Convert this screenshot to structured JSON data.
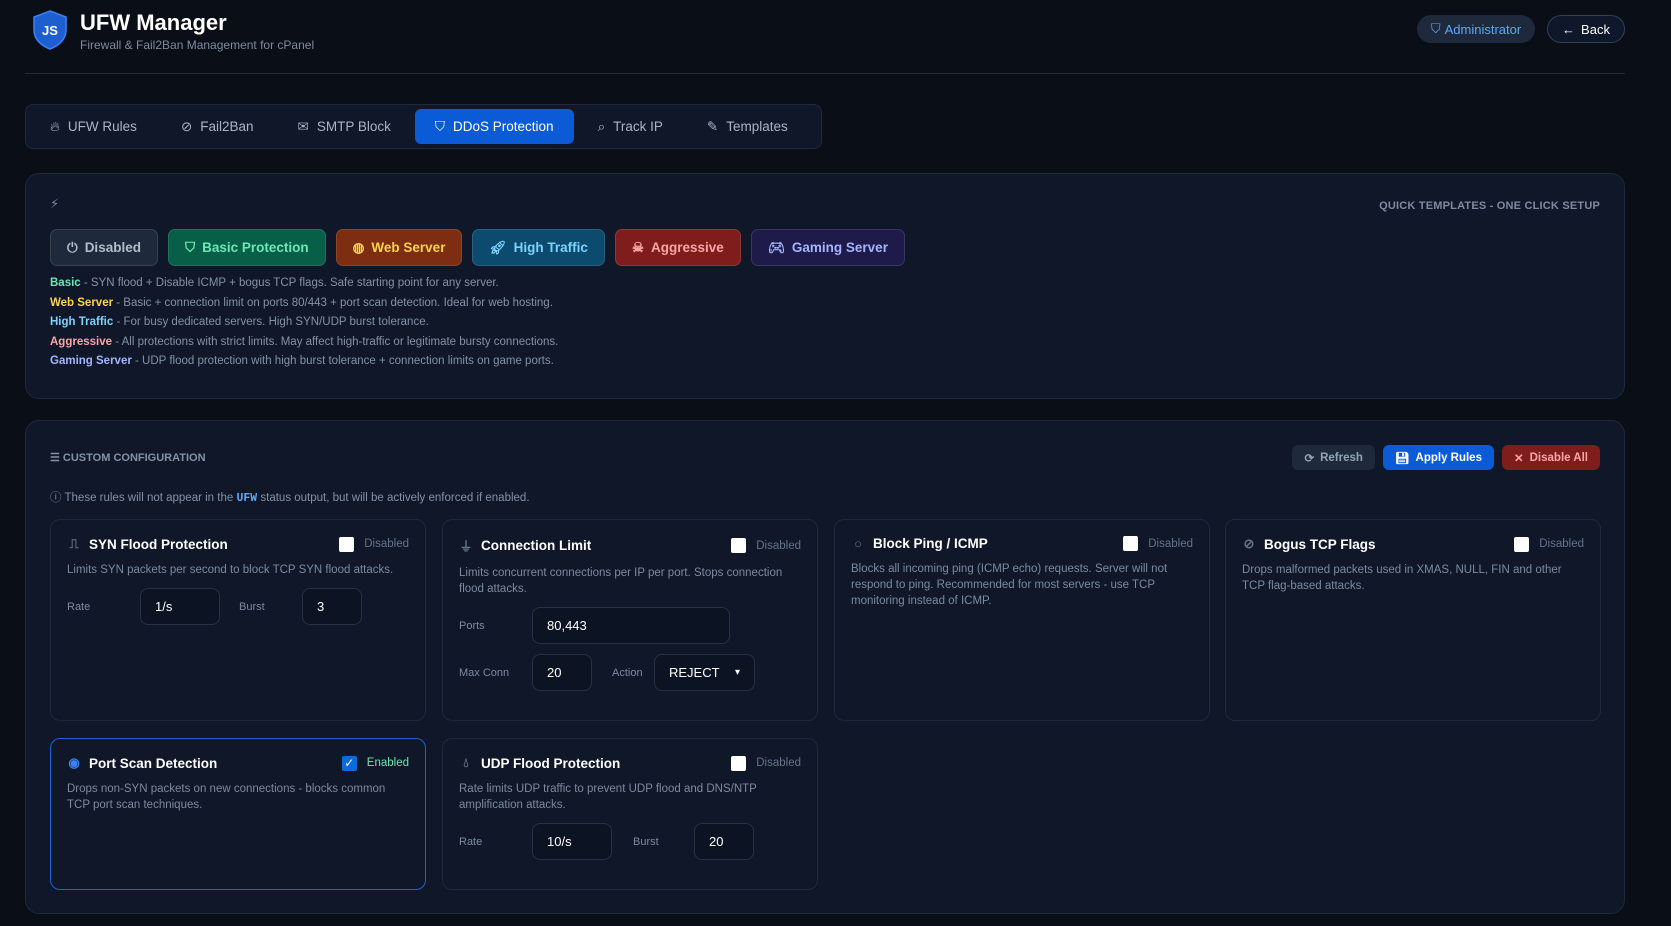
{
  "header": {
    "logo_text": "JS",
    "title": "UFW Manager",
    "subtitle": "Firewall & Fail2Ban Management for cPanel",
    "role": "Administrator",
    "back": "Back"
  },
  "tabs": [
    {
      "label": "UFW Rules",
      "icon": "fire-icon"
    },
    {
      "label": "Fail2Ban",
      "icon": "ban-icon"
    },
    {
      "label": "SMTP Block",
      "icon": "envelope-icon"
    },
    {
      "label": "DDoS Protection",
      "icon": "shield-icon",
      "active": true
    },
    {
      "label": "Track IP",
      "icon": "search-icon"
    },
    {
      "label": "Templates",
      "icon": "pencil-icon"
    }
  ],
  "templates": {
    "heading": "QUICK TEMPLATES - ONE CLICK SETUP",
    "buttons": [
      {
        "label": "Disabled",
        "color": "#1e293b",
        "text": "#b4bdca"
      },
      {
        "label": "Basic Protection",
        "color": "#065f46",
        "text": "#6ee7b7"
      },
      {
        "label": "Web Server",
        "color": "#7c2d12",
        "text": "#fcd34d"
      },
      {
        "label": "High Traffic",
        "color": "#0c4a6e",
        "text": "#7dd3fc"
      },
      {
        "label": "Aggressive",
        "color": "#7f1d1d",
        "text": "#fca5a5"
      },
      {
        "label": "Gaming Server",
        "color": "#1e1b4b",
        "text": "#a5b4fc"
      }
    ],
    "descriptions": [
      {
        "name": "Basic",
        "text": " - SYN flood + Disable ICMP + bogus TCP flags. Safe starting point for any server.",
        "color": "#6ee7b7"
      },
      {
        "name": "Web Server",
        "text": " - Basic + connection limit on ports 80/443 + port scan detection. Ideal for web hosting.",
        "color": "#fcd34d"
      },
      {
        "name": "High Traffic",
        "text": " - For busy dedicated servers. High SYN/UDP burst tolerance.",
        "color": "#7dd3fc"
      },
      {
        "name": "Aggressive",
        "text": " - All protections with strict limits. May affect high-traffic or legitimate bursty connections.",
        "color": "#fca5a5"
      },
      {
        "name": "Gaming Server",
        "text": " - UDP flood protection with high burst tolerance + connection limits on game ports.",
        "color": "#a5b4fc"
      }
    ]
  },
  "config": {
    "heading": "CUSTOM CONFIGURATION",
    "refresh": "Refresh",
    "apply": "Apply Rules",
    "disable_all": "Disable All",
    "note_pre": "These rules will not appear in the ",
    "note_ufw": "UFW",
    "note_post": " status output, but will be actively enforced if enabled.",
    "cards": {
      "syn": {
        "title": "SYN Flood Protection",
        "status": "Disabled",
        "enabled": false,
        "desc": "Limits SYN packets per second to block TCP SYN flood attacks.",
        "rate_label": "Rate",
        "rate": "1/s",
        "burst_label": "Burst",
        "burst": "3"
      },
      "conn": {
        "title": "Connection Limit",
        "status": "Disabled",
        "enabled": false,
        "desc": "Limits concurrent connections per IP per port. Stops connection flood attacks.",
        "ports_label": "Ports",
        "ports": "80,443",
        "max_label": "Max Conn",
        "max": "20",
        "action_label": "Action",
        "action": "REJECT"
      },
      "ping": {
        "title": "Block Ping / ICMP",
        "status": "Disabled",
        "enabled": false,
        "desc": "Blocks all incoming ping (ICMP echo) requests. Server will not respond to ping. Recommended for most servers - use TCP monitoring instead of ICMP."
      },
      "bogus": {
        "title": "Bogus TCP Flags",
        "status": "Disabled",
        "enabled": false,
        "desc": "Drops malformed packets used in XMAS, NULL, FIN and other TCP flag-based attacks."
      },
      "portscan": {
        "title": "Port Scan Detection",
        "status": "Enabled",
        "enabled": true,
        "desc": "Drops non-SYN packets on new connections - blocks common TCP port scan techniques."
      },
      "udp": {
        "title": "UDP Flood Protection",
        "status": "Disabled",
        "enabled": false,
        "desc": "Rate limits UDP traffic to prevent UDP flood and DNS/NTP amplification attacks.",
        "rate_label": "Rate",
        "rate": "10/s",
        "burst_label": "Burst",
        "burst": "20"
      }
    }
  }
}
